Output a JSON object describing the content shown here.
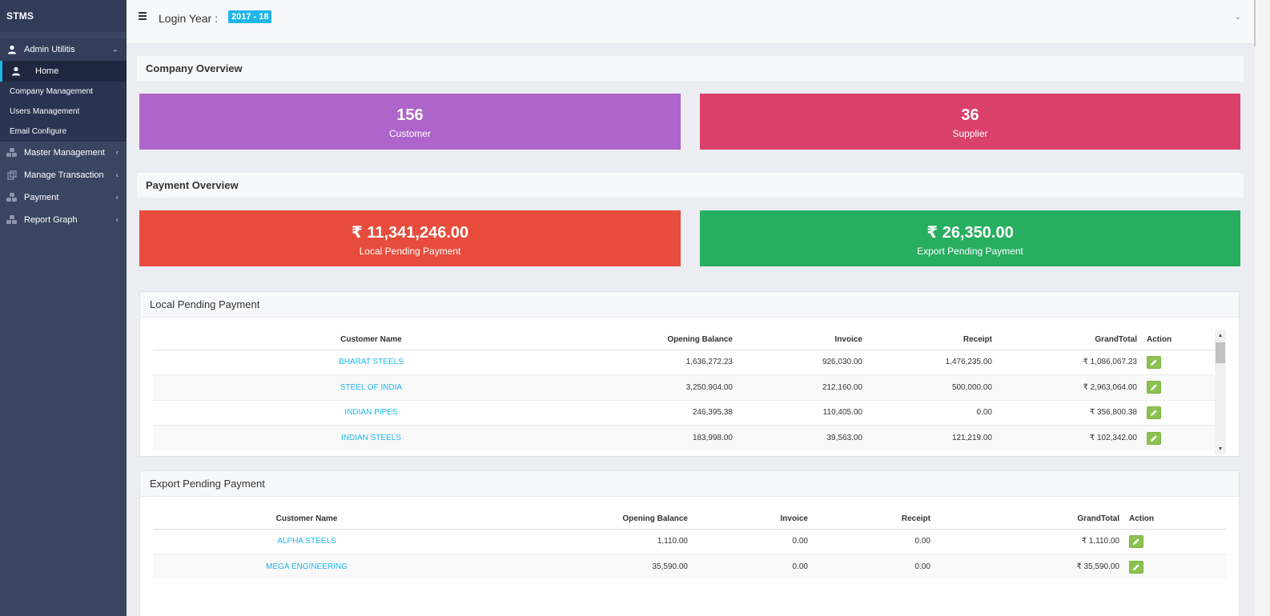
{
  "app": {
    "brand": "STMS"
  },
  "sidebar": {
    "admin": {
      "label": "Admin Utilitis",
      "arrow": "⌄"
    },
    "admin_items": [
      {
        "label": "Home"
      },
      {
        "label": "Company Management"
      },
      {
        "label": "Users Management"
      },
      {
        "label": "Email Configure"
      }
    ],
    "groups": [
      {
        "label": "Master Management",
        "arrow": "‹"
      },
      {
        "label": "Manage Transaction",
        "arrow": "‹"
      },
      {
        "label": "Payment",
        "arrow": "‹"
      },
      {
        "label": "Report Graph",
        "arrow": "‹"
      }
    ]
  },
  "topbar": {
    "login_label": "Login Year :",
    "year": "2017 - 18",
    "chevron": "⌄"
  },
  "company_overview": {
    "title": "Company Overview",
    "customer": {
      "value": "156",
      "label": "Customer",
      "color": "#ae65cb"
    },
    "supplier": {
      "value": "36",
      "label": "Supplier",
      "color": "#d9416b"
    }
  },
  "payment_overview": {
    "title": "Payment Overview",
    "local": {
      "value": "₹ 11,341,246.00",
      "label": "Local Pending Payment",
      "color": "#e74c3c"
    },
    "export": {
      "value": "₹ 26,350.00",
      "label": "Export Pending Payment",
      "color": "#27ae60"
    }
  },
  "local_table": {
    "title": "Local Pending Payment",
    "headers": [
      "Customer Name",
      "Opening Balance",
      "Invoice",
      "Receipt",
      "GrandTotal",
      "Action"
    ],
    "rows": [
      {
        "name": "BHARAT STEELS",
        "opening": "1,636,272.23",
        "invoice": "926,030.00",
        "receipt": "1,476,235.00",
        "total": "₹ 1,086,067.23"
      },
      {
        "name": "STEEL OF INDIA",
        "opening": "3,250,904.00",
        "invoice": "212,160.00",
        "receipt": "500,000.00",
        "total": "₹ 2,963,064.00"
      },
      {
        "name": "INDIAN PIPES",
        "opening": "246,395.38",
        "invoice": "110,405.00",
        "receipt": "0.00",
        "total": "₹ 356,800.38"
      },
      {
        "name": "INDIAN STEELS",
        "opening": "183,998.00",
        "invoice": "39,563.00",
        "receipt": "121,219.00",
        "total": "₹ 102,342.00"
      }
    ]
  },
  "export_table": {
    "title": "Export Pending Payment",
    "headers": [
      "Customer Name",
      "Opening Balance",
      "Invoice",
      "Receipt",
      "GrandTotal",
      "Action"
    ],
    "rows": [
      {
        "name": "ALPHA STEELS",
        "opening": "1,110.00",
        "invoice": "0.00",
        "receipt": "0.00",
        "total": "₹ 1,110.00"
      },
      {
        "name": "MEGA ENGINEERING",
        "opening": "35,590.00",
        "invoice": "0.00",
        "receipt": "0.00",
        "total": "₹ 35,590.00"
      }
    ]
  },
  "colors": {
    "sidebar": "#3a4562",
    "accent": "#1fb5e8",
    "edit": "#8cc152"
  }
}
